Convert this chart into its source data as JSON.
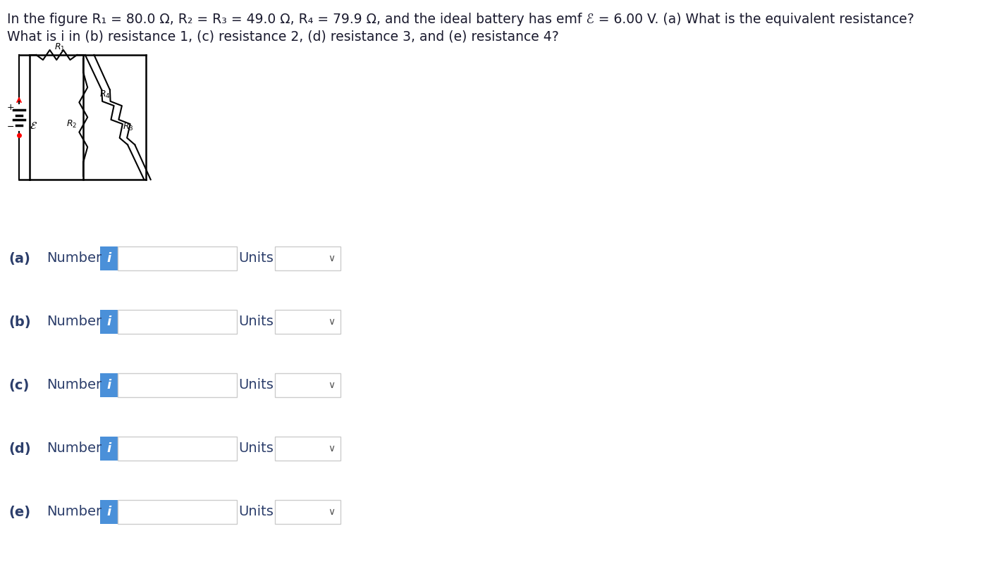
{
  "title_line1": "In the figure R₁ = 80.0 Ω, R₂ = R₃ = 49.0 Ω, R₄ = 79.9 Ω, and the ideal battery has emf ℰ = 6.00 V. (a) What is the equivalent resistance?",
  "title_line2": "What is i in (b) resistance 1, (c) resistance 2, (d) resistance 3, and (e) resistance 4?",
  "rows": [
    {
      "label": "(a)",
      "text": "Number",
      "units": "Units"
    },
    {
      "label": "(b)",
      "text": "Number",
      "units": "Units"
    },
    {
      "label": "(c)",
      "text": "Number",
      "units": "Units"
    },
    {
      "label": "(d)",
      "text": "Number",
      "units": "Units"
    },
    {
      "label": "(e)",
      "text": "Number",
      "units": "Units"
    }
  ],
  "bg_color": "#ffffff",
  "text_color": "#2c3e6b",
  "label_color": "#2c3e6b",
  "input_box_border": "#cccccc",
  "blue_btn_color": "#4a90d9",
  "blue_btn_text": "i",
  "title_color": "#1a1a2e"
}
